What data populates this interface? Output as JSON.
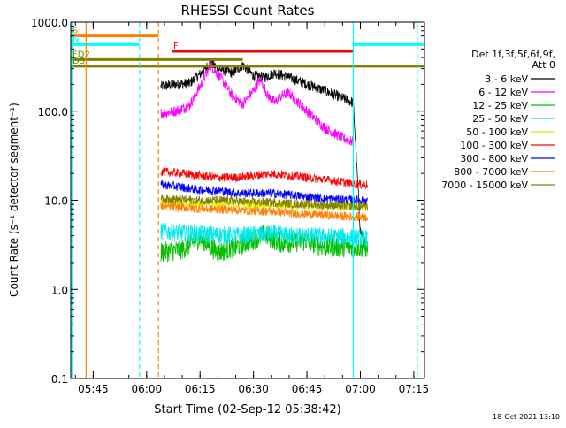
{
  "chart_data": {
    "type": "line",
    "title": "RHESSI Count Rates",
    "xlabel": "Start Time (02-Sep-12 05:38:42)",
    "ylabel": "Count Rate (s⁻¹ detector segment⁻¹)",
    "x_range": [
      "05:38:42",
      "07:18:00"
    ],
    "y_range": [
      0.1,
      1000.0
    ],
    "y_scale": "log",
    "x_ticks": [
      "05:45",
      "06:00",
      "06:15",
      "06:30",
      "06:45",
      "07:00",
      "07:15"
    ],
    "y_ticks": [
      "0.1",
      "1.0",
      "10.0",
      "100.0",
      "1000.0"
    ],
    "legend_title": [
      "Det 1f,3f,5f,6f,9f,",
      "Att 0"
    ],
    "legend_position": "right",
    "footer": "18-Oct-2021 13:10",
    "data_gaps": [
      {
        "start": "05:38:42",
        "end": "06:04:30"
      },
      {
        "start": "07:02:00",
        "end": "07:18:00"
      }
    ],
    "series": [
      {
        "name": "3 - 6 keV",
        "color": "#000000",
        "points": [
          [
            "06:04",
            190
          ],
          [
            "06:08",
            200
          ],
          [
            "06:12",
            205
          ],
          [
            "06:15",
            260
          ],
          [
            "06:18",
            350
          ],
          [
            "06:20",
            300
          ],
          [
            "06:24",
            270
          ],
          [
            "06:27",
            330
          ],
          [
            "06:30",
            250
          ],
          [
            "06:33",
            240
          ],
          [
            "06:36",
            270
          ],
          [
            "06:40",
            240
          ],
          [
            "06:45",
            200
          ],
          [
            "06:50",
            170
          ],
          [
            "06:55",
            140
          ],
          [
            "06:58",
            125
          ],
          [
            "07:00",
            4.5
          ],
          [
            "07:01",
            3.5
          ],
          [
            "07:02",
            2.5
          ]
        ]
      },
      {
        "name": "6 - 12 keV",
        "color": "#ff00ff",
        "points": [
          [
            "06:04",
            95
          ],
          [
            "06:08",
            100
          ],
          [
            "06:12",
            115
          ],
          [
            "06:15",
            190
          ],
          [
            "06:18",
            330
          ],
          [
            "06:21",
            230
          ],
          [
            "06:24",
            150
          ],
          [
            "06:27",
            120
          ],
          [
            "06:30",
            170
          ],
          [
            "06:32",
            230
          ],
          [
            "06:34",
            150
          ],
          [
            "06:36",
            125
          ],
          [
            "06:38",
            150
          ],
          [
            "06:40",
            160
          ],
          [
            "06:45",
            100
          ],
          [
            "06:50",
            65
          ],
          [
            "06:55",
            50
          ],
          [
            "06:58",
            45
          ]
        ]
      },
      {
        "name": "12 - 25 keV",
        "color": "#00c000",
        "points": [
          [
            "06:04",
            2.6
          ],
          [
            "06:10",
            2.8
          ],
          [
            "06:15",
            3.8
          ],
          [
            "06:20",
            2.6
          ],
          [
            "06:25",
            3.0
          ],
          [
            "06:30",
            3.6
          ],
          [
            "06:33",
            4.1
          ],
          [
            "06:38",
            3.3
          ],
          [
            "06:45",
            3.5
          ],
          [
            "06:50",
            3.0
          ],
          [
            "06:55",
            3.0
          ],
          [
            "07:00",
            3.0
          ],
          [
            "07:02",
            2.9
          ]
        ]
      },
      {
        "name": "25 - 50 keV",
        "color": "#00e8e8",
        "points": [
          [
            "06:04",
            4.5
          ],
          [
            "06:10",
            4.3
          ],
          [
            "06:15",
            4.2
          ],
          [
            "06:20",
            4.1
          ],
          [
            "06:25",
            4.0
          ],
          [
            "06:30",
            4.1
          ],
          [
            "06:35",
            4.2
          ],
          [
            "06:40",
            4.0
          ],
          [
            "06:45",
            4.0
          ],
          [
            "06:50",
            3.9
          ],
          [
            "06:55",
            3.9
          ],
          [
            "07:00",
            3.8
          ],
          [
            "07:02",
            3.8
          ]
        ]
      },
      {
        "name": "50 - 100 keV",
        "color": "#e8e800",
        "points": [
          [
            "06:04",
            9.5
          ],
          [
            "06:10",
            9.3
          ],
          [
            "06:15",
            9.2
          ],
          [
            "06:20",
            9.0
          ],
          [
            "06:25",
            9.0
          ],
          [
            "06:30",
            9.1
          ],
          [
            "06:35",
            8.9
          ],
          [
            "06:40",
            8.8
          ],
          [
            "06:45",
            8.7
          ],
          [
            "06:50",
            8.6
          ],
          [
            "06:55",
            8.5
          ],
          [
            "07:00",
            8.5
          ],
          [
            "07:02",
            8.4
          ]
        ]
      },
      {
        "name": "100 - 300 keV",
        "color": "#ff0000",
        "points": [
          [
            "06:04",
            21
          ],
          [
            "06:10",
            20
          ],
          [
            "06:15",
            19
          ],
          [
            "06:20",
            18
          ],
          [
            "06:25",
            18
          ],
          [
            "06:30",
            19
          ],
          [
            "06:35",
            20
          ],
          [
            "06:40",
            19
          ],
          [
            "06:45",
            18
          ],
          [
            "06:50",
            17
          ],
          [
            "06:55",
            16
          ],
          [
            "07:00",
            15
          ],
          [
            "07:02",
            15
          ]
        ]
      },
      {
        "name": "300 - 800 keV",
        "color": "#0000ff",
        "points": [
          [
            "06:04",
            15
          ],
          [
            "06:10",
            14
          ],
          [
            "06:15",
            13
          ],
          [
            "06:20",
            13
          ],
          [
            "06:25",
            12
          ],
          [
            "06:30",
            12
          ],
          [
            "06:35",
            12
          ],
          [
            "06:40",
            11.5
          ],
          [
            "06:45",
            11
          ],
          [
            "06:50",
            10.5
          ],
          [
            "06:55",
            10.2
          ],
          [
            "07:00",
            10
          ],
          [
            "07:02",
            10
          ]
        ]
      },
      {
        "name": "800 - 7000 keV",
        "color": "#ff8000",
        "points": [
          [
            "06:04",
            8.5
          ],
          [
            "06:10",
            8.3
          ],
          [
            "06:15",
            8.0
          ],
          [
            "06:20",
            7.9
          ],
          [
            "06:25",
            7.8
          ],
          [
            "06:30",
            7.6
          ],
          [
            "06:35",
            7.5
          ],
          [
            "06:40",
            7.2
          ],
          [
            "06:45",
            7.0
          ],
          [
            "06:50",
            6.8
          ],
          [
            "06:55",
            6.6
          ],
          [
            "07:00",
            6.5
          ],
          [
            "07:02",
            6.5
          ]
        ]
      },
      {
        "name": "7000 - 15000 keV",
        "color": "#808000",
        "points": [
          [
            "06:04",
            10.5
          ],
          [
            "06:10",
            10.2
          ],
          [
            "06:15",
            10.0
          ],
          [
            "06:20",
            10.0
          ],
          [
            "06:25",
            9.8
          ],
          [
            "06:30",
            9.5
          ],
          [
            "06:35",
            9.5
          ],
          [
            "06:40",
            9.2
          ],
          [
            "06:45",
            9.0
          ],
          [
            "06:50",
            8.8
          ],
          [
            "06:55",
            8.7
          ],
          [
            "07:00",
            8.5
          ],
          [
            "07:02",
            8.5
          ]
        ]
      }
    ],
    "flag_bars": [
      {
        "label": "S",
        "color": "#ff7f00",
        "level": 700,
        "start": "05:38:42",
        "end": "06:03:20"
      },
      {
        "label": "N",
        "color": "#00ffff",
        "level": 560,
        "start": "05:38:42",
        "end": "05:58:00"
      },
      {
        "label": "",
        "color": "#00ffff",
        "level": 560,
        "start": "06:58:00",
        "end": "07:18:00"
      },
      {
        "label": "F",
        "color": "#ff0000",
        "level": 470,
        "start": "06:07:00",
        "end": "06:58:00"
      },
      {
        "label": "FD2",
        "color": "#808000",
        "level": 380,
        "start": "05:38:42",
        "end": "06:27:00"
      },
      {
        "label": "D3",
        "color": "#808000",
        "level": 320,
        "start": "05:38:42",
        "end": "07:18:00"
      }
    ],
    "marker_lines": [
      {
        "time": "05:39:00",
        "color": "#00ffff",
        "style": "solid"
      },
      {
        "time": "05:43:00",
        "color": "#ff7f00",
        "style": "solid"
      },
      {
        "time": "05:58:00",
        "color": "#00ffff",
        "style": "dashed"
      },
      {
        "time": "06:03:20",
        "color": "#ff7f00",
        "style": "dashed"
      },
      {
        "time": "06:58:00",
        "color": "#00ffff",
        "style": "solid"
      },
      {
        "time": "07:16:00",
        "color": "#00ffff",
        "style": "dashed"
      }
    ]
  }
}
